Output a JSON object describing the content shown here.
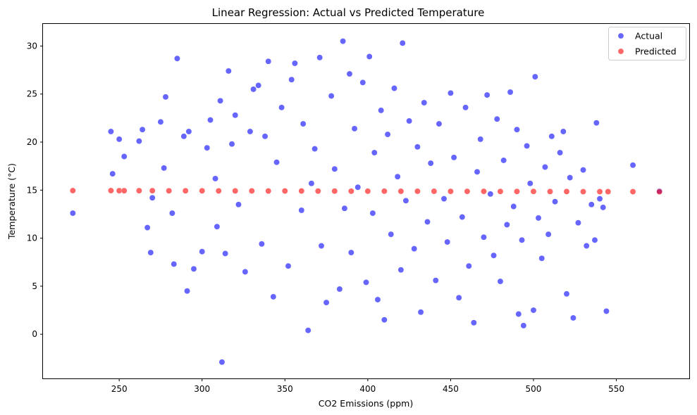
{
  "chart_data": {
    "type": "scatter",
    "title": "Linear Regression: Actual vs Predicted Temperature",
    "xlabel": "CO2 Emissions (ppm)",
    "ylabel": "Temperature (°C)",
    "xlim": [
      204,
      594
    ],
    "ylim": [
      -4.6,
      32.3
    ],
    "xticks": [
      250,
      300,
      350,
      400,
      450,
      500,
      550
    ],
    "yticks": [
      0,
      5,
      10,
      15,
      20,
      25,
      30
    ],
    "grid": false,
    "legend_position": "top-right",
    "series": [
      {
        "name": "Actual",
        "color": "#0000ff",
        "opacity": 0.6,
        "points": [
          [
            222,
            12.6
          ],
          [
            245,
            21.1
          ],
          [
            246,
            16.7
          ],
          [
            250,
            20.3
          ],
          [
            253,
            18.5
          ],
          [
            262,
            20.1
          ],
          [
            264,
            21.3
          ],
          [
            267,
            11.1
          ],
          [
            269,
            8.5
          ],
          [
            270,
            14.2
          ],
          [
            275,
            22.1
          ],
          [
            277,
            17.3
          ],
          [
            278,
            24.7
          ],
          [
            282,
            12.6
          ],
          [
            283,
            7.3
          ],
          [
            285,
            28.7
          ],
          [
            289,
            20.6
          ],
          [
            291,
            4.5
          ],
          [
            292,
            21.1
          ],
          [
            295,
            6.8
          ],
          [
            300,
            8.6
          ],
          [
            303,
            19.4
          ],
          [
            305,
            22.3
          ],
          [
            308,
            16.2
          ],
          [
            309,
            11.2
          ],
          [
            311,
            24.3
          ],
          [
            312,
            -2.9
          ],
          [
            314,
            8.4
          ],
          [
            316,
            27.4
          ],
          [
            318,
            19.8
          ],
          [
            320,
            22.8
          ],
          [
            322,
            13.5
          ],
          [
            326,
            6.5
          ],
          [
            329,
            21.1
          ],
          [
            331,
            25.5
          ],
          [
            334,
            25.9
          ],
          [
            336,
            9.4
          ],
          [
            338,
            20.6
          ],
          [
            340,
            28.4
          ],
          [
            343,
            3.9
          ],
          [
            345,
            17.9
          ],
          [
            348,
            23.6
          ],
          [
            352,
            7.1
          ],
          [
            354,
            26.5
          ],
          [
            356,
            28.2
          ],
          [
            360,
            12.9
          ],
          [
            361,
            21.9
          ],
          [
            364,
            0.4
          ],
          [
            366,
            15.7
          ],
          [
            368,
            19.3
          ],
          [
            371,
            28.8
          ],
          [
            372,
            9.2
          ],
          [
            375,
            3.3
          ],
          [
            378,
            24.8
          ],
          [
            380,
            17.2
          ],
          [
            383,
            4.7
          ],
          [
            385,
            30.5
          ],
          [
            386,
            13.1
          ],
          [
            389,
            27.1
          ],
          [
            390,
            8.5
          ],
          [
            392,
            21.4
          ],
          [
            394,
            15.3
          ],
          [
            397,
            26.2
          ],
          [
            399,
            5.4
          ],
          [
            401,
            28.9
          ],
          [
            403,
            12.6
          ],
          [
            404,
            18.9
          ],
          [
            406,
            3.6
          ],
          [
            408,
            23.3
          ],
          [
            410,
            1.5
          ],
          [
            412,
            20.8
          ],
          [
            414,
            10.4
          ],
          [
            416,
            25.6
          ],
          [
            418,
            16.4
          ],
          [
            420,
            6.7
          ],
          [
            421,
            30.3
          ],
          [
            423,
            13.9
          ],
          [
            425,
            22.2
          ],
          [
            428,
            8.9
          ],
          [
            430,
            19.5
          ],
          [
            432,
            2.3
          ],
          [
            434,
            24.1
          ],
          [
            436,
            11.7
          ],
          [
            438,
            17.8
          ],
          [
            441,
            5.6
          ],
          [
            443,
            21.9
          ],
          [
            446,
            14.1
          ],
          [
            448,
            9.6
          ],
          [
            450,
            25.1
          ],
          [
            452,
            18.4
          ],
          [
            455,
            3.8
          ],
          [
            457,
            12.2
          ],
          [
            459,
            23.6
          ],
          [
            461,
            7.1
          ],
          [
            464,
            1.2
          ],
          [
            466,
            16.9
          ],
          [
            468,
            20.3
          ],
          [
            470,
            10.1
          ],
          [
            472,
            24.9
          ],
          [
            474,
            14.6
          ],
          [
            476,
            8.2
          ],
          [
            478,
            22.4
          ],
          [
            480,
            5.5
          ],
          [
            482,
            18.1
          ],
          [
            484,
            11.4
          ],
          [
            486,
            25.2
          ],
          [
            488,
            13.3
          ],
          [
            490,
            21.3
          ],
          [
            491,
            2.1
          ],
          [
            493,
            9.8
          ],
          [
            494,
            0.9
          ],
          [
            496,
            19.6
          ],
          [
            498,
            15.7
          ],
          [
            500,
            2.5
          ],
          [
            501,
            26.8
          ],
          [
            503,
            12.1
          ],
          [
            505,
            7.9
          ],
          [
            507,
            17.4
          ],
          [
            509,
            10.4
          ],
          [
            511,
            20.6
          ],
          [
            513,
            13.8
          ],
          [
            516,
            18.9
          ],
          [
            518,
            21.1
          ],
          [
            520,
            4.2
          ],
          [
            522,
            16.3
          ],
          [
            524,
            1.7
          ],
          [
            527,
            11.6
          ],
          [
            530,
            17.1
          ],
          [
            532,
            9.2
          ],
          [
            535,
            13.5
          ],
          [
            537,
            9.8
          ],
          [
            538,
            22
          ],
          [
            540,
            14.1
          ],
          [
            542,
            13.2
          ],
          [
            544,
            2.4
          ],
          [
            560,
            17.6
          ],
          [
            576,
            14.9
          ]
        ]
      },
      {
        "name": "Predicted",
        "color": "#ff0000",
        "opacity": 0.6,
        "points": [
          [
            222,
            14.95
          ],
          [
            245,
            14.95
          ],
          [
            250,
            14.94
          ],
          [
            253,
            14.94
          ],
          [
            262,
            14.94
          ],
          [
            270,
            14.94
          ],
          [
            280,
            14.93
          ],
          [
            290,
            14.93
          ],
          [
            300,
            14.93
          ],
          [
            310,
            14.92
          ],
          [
            320,
            14.92
          ],
          [
            330,
            14.92
          ],
          [
            340,
            14.91
          ],
          [
            350,
            14.91
          ],
          [
            360,
            14.91
          ],
          [
            370,
            14.9
          ],
          [
            380,
            14.9
          ],
          [
            390,
            14.89
          ],
          [
            400,
            14.89
          ],
          [
            410,
            14.89
          ],
          [
            420,
            14.88
          ],
          [
            430,
            14.88
          ],
          [
            440,
            14.88
          ],
          [
            450,
            14.87
          ],
          [
            460,
            14.87
          ],
          [
            470,
            14.87
          ],
          [
            480,
            14.86
          ],
          [
            490,
            14.86
          ],
          [
            500,
            14.86
          ],
          [
            510,
            14.85
          ],
          [
            520,
            14.85
          ],
          [
            530,
            14.84
          ],
          [
            540,
            14.84
          ],
          [
            545,
            14.84
          ],
          [
            560,
            14.84
          ],
          [
            576,
            14.83
          ]
        ]
      }
    ]
  }
}
